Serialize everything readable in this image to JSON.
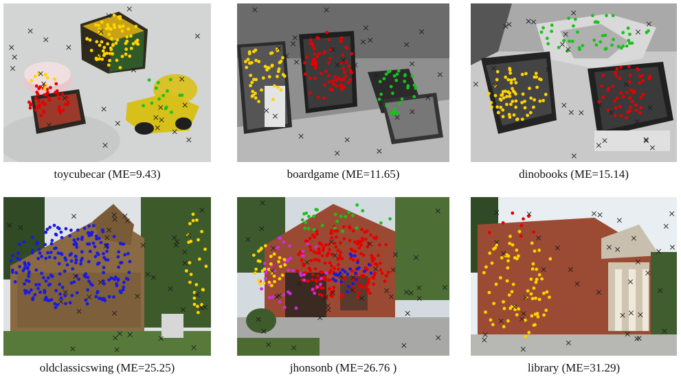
{
  "figure": {
    "panels": [
      {
        "id": "toycubecar",
        "caption": "toycubecar (ME=9.43)"
      },
      {
        "id": "boardgame",
        "caption": "boardgame (ME=11.65)"
      },
      {
        "id": "dinobooks",
        "caption": "dinobooks (ME=15.14)"
      },
      {
        "id": "oldclassicswing",
        "caption": "oldclassicswing (ME=25.25)"
      },
      {
        "id": "jhonsonb",
        "caption": "jhonsonb (ME=26.76 )"
      },
      {
        "id": "library",
        "caption": "library (ME=31.29)"
      }
    ],
    "colors": {
      "red": "#e60000",
      "yellow": "#ffd400",
      "green": "#18c21b",
      "blue": "#1a1ae0",
      "magenta": "#d22ce0",
      "cross": "#1b1b1b"
    }
  }
}
